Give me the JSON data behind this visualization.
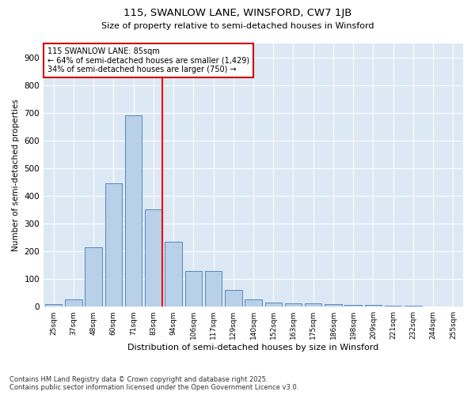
{
  "title1": "115, SWANLOW LANE, WINSFORD, CW7 1JB",
  "title2": "Size of property relative to semi-detached houses in Winsford",
  "xlabel": "Distribution of semi-detached houses by size in Winsford",
  "ylabel": "Number of semi-detached properties",
  "footer1": "Contains HM Land Registry data © Crown copyright and database right 2025.",
  "footer2": "Contains public sector information licensed under the Open Government Licence v3.0.",
  "bin_labels": [
    "25sqm",
    "37sqm",
    "48sqm",
    "60sqm",
    "71sqm",
    "83sqm",
    "94sqm",
    "106sqm",
    "117sqm",
    "129sqm",
    "140sqm",
    "152sqm",
    "163sqm",
    "175sqm",
    "186sqm",
    "198sqm",
    "209sqm",
    "221sqm",
    "232sqm",
    "244sqm",
    "255sqm"
  ],
  "bar_values": [
    10,
    25,
    215,
    445,
    690,
    350,
    235,
    130,
    130,
    60,
    25,
    15,
    12,
    12,
    10,
    7,
    5,
    4,
    3,
    2,
    1
  ],
  "bar_color": "#b8d0e8",
  "bar_edge_color": "#5588bb",
  "vline_bin_index": 5,
  "annotation_title": "115 SWANLOW LANE: 85sqm",
  "annotation_line1": "← 64% of semi-detached houses are smaller (1,429)",
  "annotation_line2": "34% of semi-detached houses are larger (750) →",
  "annotation_box_edgecolor": "#cc0000",
  "ylim": [
    0,
    950
  ],
  "yticks": [
    0,
    100,
    200,
    300,
    400,
    500,
    600,
    700,
    800,
    900
  ],
  "bg_color": "#ffffff",
  "plot_bg_color": "#dde8f5"
}
